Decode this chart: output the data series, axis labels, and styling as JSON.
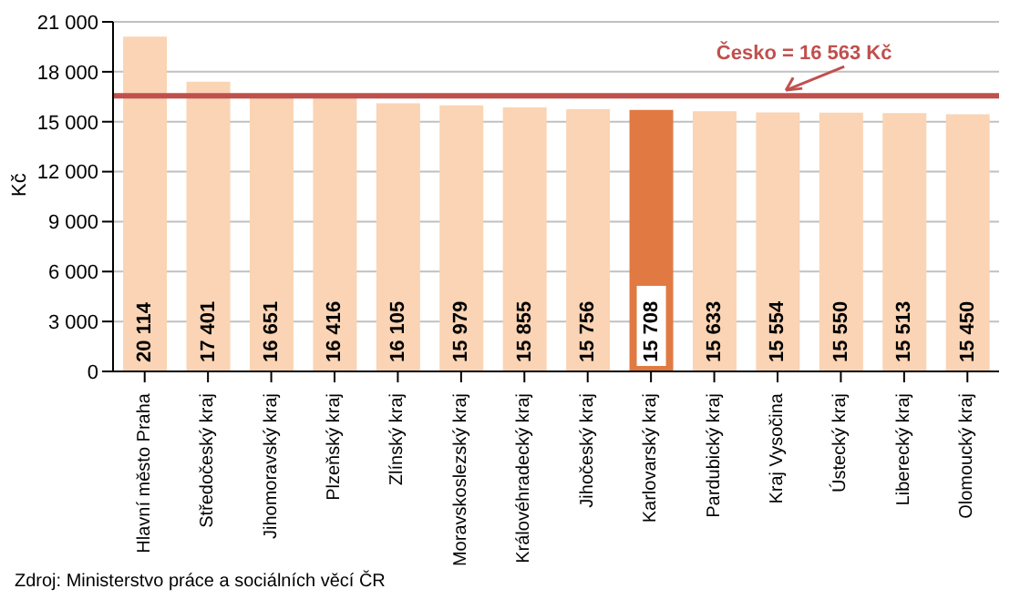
{
  "chart_data": {
    "type": "bar",
    "ylabel": "Kč",
    "categories": [
      "Hlavní město Praha",
      "Středočeský kraj",
      "Jihomoravský kraj",
      "Plzeňský kraj",
      "Zlínský kraj",
      "Moravskoslezský kraj",
      "Královéhradecký kraj",
      "Jihočeský kraj",
      "Karlovarský kraj",
      "Pardubický kraj",
      "Kraj Vysočina",
      "Ústecký kraj",
      "Liberecký kraj",
      "Olomoucký kraj"
    ],
    "values": [
      20114,
      17401,
      16651,
      16416,
      16105,
      15979,
      15855,
      15756,
      15708,
      15633,
      15554,
      15550,
      15513,
      15450
    ],
    "value_labels": [
      "20 114",
      "17 401",
      "16 651",
      "16 416",
      "16 105",
      "15 979",
      "15 855",
      "15 756",
      "15 708",
      "15 633",
      "15 554",
      "15 550",
      "15 513",
      "15 450"
    ],
    "colors": [
      "#fad4b4",
      "#fad4b4",
      "#fad4b4",
      "#fad4b4",
      "#fad4b4",
      "#fad4b4",
      "#fad4b4",
      "#fad4b4",
      "#e07a42",
      "#fad4b4",
      "#fad4b4",
      "#fad4b4",
      "#fad4b4",
      "#fad4b4"
    ],
    "ylim": [
      0,
      21000
    ],
    "yticks": [
      0,
      {
        "value": 3000,
        "label": "3 000"
      },
      {
        "value": 6000,
        "label": "6 000"
      },
      {
        "value": 9000,
        "label": "9 000"
      },
      {
        "value": 12000,
        "label": "12 000"
      },
      {
        "value": 15000,
        "label": "15 000"
      },
      {
        "value": 18000,
        "label": "18 000"
      },
      {
        "value": 21000,
        "label": "21 000"
      }
    ],
    "grid": "y",
    "legend": false,
    "ref_lines": [
      {
        "axis": "y",
        "value": 16563,
        "label": "Česko = 16 563 Kč",
        "color": "#c0504d"
      }
    ],
    "annotations": [
      "Zdroj: Ministerstvo práce a sociálních věcí ČR"
    ]
  }
}
